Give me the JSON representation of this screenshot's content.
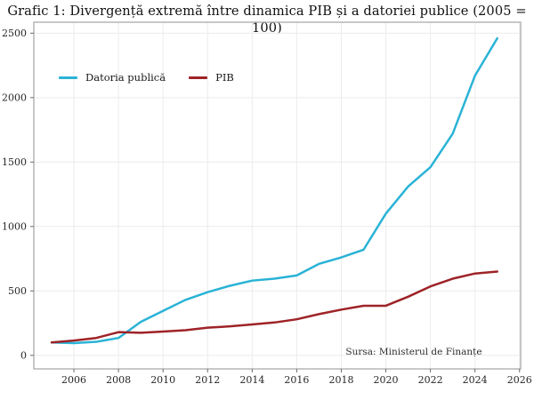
{
  "title": "Grafic 1: Divergență extremă între dinamica PIB și a datoriei publice (2005 = 100)",
  "source_note": "Sursa: Ministerul de Finanțe",
  "colors": {
    "debt_line": "#2ab3d6",
    "gdp_line": "#9e2327",
    "grid": "#ececec",
    "frame": "#ababab",
    "tick": "#6b6b6b",
    "tick_text": "#262626"
  },
  "chart_data": {
    "type": "line",
    "title": "Grafic 1: Divergență extremă între dinamica PIB și a datoriei publice (2005 = 100)",
    "xlabel": "",
    "ylabel": "",
    "x": [
      2005,
      2006,
      2007,
      2008,
      2009,
      2010,
      2011,
      2012,
      2013,
      2014,
      2015,
      2016,
      2017,
      2018,
      2019,
      2020,
      2021,
      2022,
      2023,
      2024,
      2025
    ],
    "series": [
      {
        "name": "Datoria publică",
        "color": "#2ab3d6",
        "values": [
          100,
          95,
          105,
          135,
          260,
          345,
          430,
          490,
          540,
          580,
          595,
          620,
          710,
          760,
          820,
          1100,
          1310,
          1460,
          1720,
          2170,
          2460
        ]
      },
      {
        "name": "PIB",
        "color": "#9e2327",
        "values": [
          100,
          115,
          135,
          180,
          175,
          185,
          195,
          215,
          225,
          240,
          255,
          280,
          320,
          355,
          385,
          385,
          455,
          535,
          595,
          635,
          650
        ]
      }
    ],
    "xlim": [
      2004.2,
      2026.05
    ],
    "ylim": [
      -105,
      2585
    ],
    "xticks": [
      2006,
      2008,
      2010,
      2012,
      2014,
      2016,
      2018,
      2020,
      2022,
      2024,
      2026
    ],
    "yticks": [
      0,
      500,
      1000,
      1500,
      2000,
      2500
    ],
    "grid": true,
    "legend_position": "top-left"
  }
}
